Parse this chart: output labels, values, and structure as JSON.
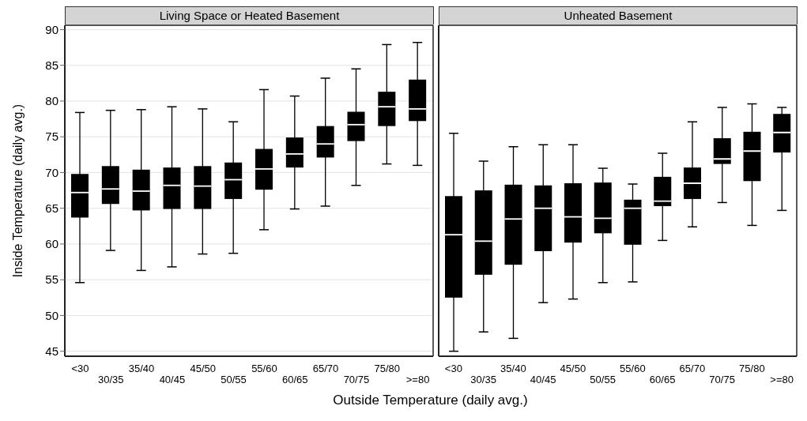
{
  "chart_data": [
    {
      "type": "box",
      "title": "Living Space or Heated Basement",
      "ylabel": "Inside Temperature (daily avg.)",
      "xlabel": "Outside Temperature (daily avg.)",
      "categories": [
        "<30",
        "30/35",
        "35/40",
        "40/45",
        "45/50",
        "50/55",
        "55/60",
        "60/65",
        "65/70",
        "70/75",
        "75/80",
        ">=80"
      ],
      "color": "#000000",
      "ylim": [
        44.3,
        90.6
      ],
      "yticks": [
        45,
        50,
        55,
        60,
        65,
        70,
        75,
        80,
        85,
        90
      ],
      "grid": "y",
      "boxes": [
        {
          "low": 54.6,
          "q1": 63.7,
          "median": 67.2,
          "q3": 69.8,
          "high": 78.4
        },
        {
          "low": 59.1,
          "q1": 65.6,
          "median": 67.7,
          "q3": 70.9,
          "high": 78.7
        },
        {
          "low": 56.3,
          "q1": 64.7,
          "median": 67.4,
          "q3": 70.4,
          "high": 78.8
        },
        {
          "low": 56.8,
          "q1": 64.9,
          "median": 68.2,
          "q3": 70.7,
          "high": 79.2
        },
        {
          "low": 58.6,
          "q1": 64.9,
          "median": 68.1,
          "q3": 70.9,
          "high": 78.9
        },
        {
          "low": 58.7,
          "q1": 66.3,
          "median": 69.0,
          "q3": 71.4,
          "high": 77.1
        },
        {
          "low": 62.0,
          "q1": 67.6,
          "median": 70.5,
          "q3": 73.3,
          "high": 81.6
        },
        {
          "low": 64.9,
          "q1": 70.7,
          "median": 72.6,
          "q3": 74.9,
          "high": 80.7
        },
        {
          "low": 65.3,
          "q1": 72.1,
          "median": 74.0,
          "q3": 76.5,
          "high": 83.2
        },
        {
          "low": 68.2,
          "q1": 74.4,
          "median": 76.7,
          "q3": 78.5,
          "high": 84.5
        },
        {
          "low": 71.2,
          "q1": 76.5,
          "median": 79.2,
          "q3": 81.3,
          "high": 87.9
        },
        {
          "low": 71.0,
          "q1": 77.2,
          "median": 78.9,
          "q3": 83.0,
          "high": 88.2
        }
      ]
    },
    {
      "type": "box",
      "title": "Unheated Basement",
      "categories": [
        "<30",
        "30/35",
        "35/40",
        "40/45",
        "45/50",
        "50/55",
        "55/60",
        "60/65",
        "65/70",
        "70/75",
        "75/80",
        ">=80"
      ],
      "color": "#000000",
      "ylim": [
        44.3,
        90.6
      ],
      "yticks": [
        45,
        50,
        55,
        60,
        65,
        70,
        75,
        80,
        85,
        90
      ],
      "grid": "y",
      "tick_labels": "x",
      "boxes": [
        {
          "low": 45.0,
          "q1": 52.5,
          "median": 61.3,
          "q3": 66.7,
          "high": 75.5
        },
        {
          "low": 47.7,
          "q1": 55.7,
          "median": 60.4,
          "q3": 67.5,
          "high": 71.6
        },
        {
          "low": 46.8,
          "q1": 57.1,
          "median": 63.5,
          "q3": 68.3,
          "high": 73.6
        },
        {
          "low": 51.8,
          "q1": 59.0,
          "median": 65.0,
          "q3": 68.2,
          "high": 73.9
        },
        {
          "low": 52.3,
          "q1": 60.2,
          "median": 63.8,
          "q3": 68.5,
          "high": 73.9
        },
        {
          "low": 54.6,
          "q1": 61.5,
          "median": 63.6,
          "q3": 68.6,
          "high": 70.6
        },
        {
          "low": 54.7,
          "q1": 59.9,
          "median": 65.0,
          "q3": 66.2,
          "high": 68.4
        },
        {
          "low": 60.5,
          "q1": 65.3,
          "median": 66.0,
          "q3": 69.4,
          "high": 72.7
        },
        {
          "low": 62.4,
          "q1": 66.3,
          "median": 68.5,
          "q3": 70.7,
          "high": 77.1
        },
        {
          "low": 65.8,
          "q1": 71.2,
          "median": 71.9,
          "q3": 74.8,
          "high": 79.1
        },
        {
          "low": 62.6,
          "q1": 68.8,
          "median": 73.0,
          "q3": 75.7,
          "high": 79.6
        },
        {
          "low": 64.7,
          "q1": 72.8,
          "median": 75.6,
          "q3": 78.2,
          "high": 79.1
        }
      ]
    }
  ]
}
